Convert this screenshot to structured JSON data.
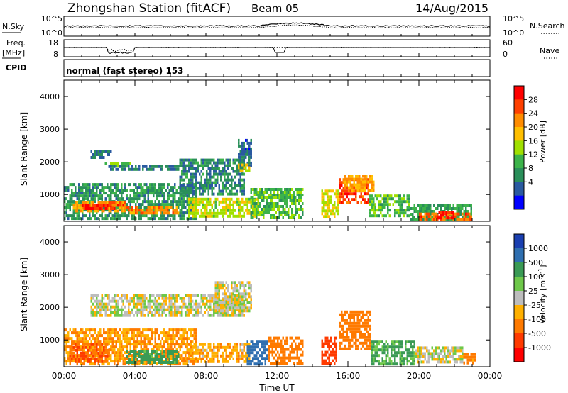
{
  "header": {
    "station": "Zhongshan Station (fitACF)",
    "beam": "Beam 05",
    "date": "14/Aug/2015"
  },
  "strip": {
    "nsky_label": "N.Sky",
    "nsky_ticks": [
      "10^5",
      "10^0"
    ],
    "nsearch_label": "N.Search",
    "nsearch_ticks": [
      "10^5",
      "10^0"
    ],
    "freq_label_1": "Freq.",
    "freq_label_2": "[MHz]",
    "freq_ticks": [
      "18",
      "8"
    ],
    "nave_label": "Nave",
    "nave_ticks": [
      "60",
      "0"
    ],
    "cpid_label": "CPID",
    "cpid_value": "normal (fast stereo) 153"
  },
  "power_colorbar": {
    "label": "Power [dB]",
    "ticks": [
      "28",
      "24",
      "20",
      "16",
      "12",
      "8",
      "4"
    ],
    "colors": [
      "#ff0000",
      "#ff4000",
      "#ff8c00",
      "#ffbf00",
      "#a0e000",
      "#3cb34a",
      "#2a8f5a",
      "#2a5aa0",
      "#0000ff"
    ]
  },
  "velocity_colorbar": {
    "label": "Velocity [m s",
    "label_sup": "-1",
    "label_end": "]",
    "ticks": [
      "1000",
      "500",
      "100",
      "25",
      "-25",
      "-100",
      "-500",
      "-1000"
    ],
    "colors": [
      "#1a3fb0",
      "#2f6fb0",
      "#3a9a55",
      "#6ec84a",
      "#bdbdbd",
      "#ffb000",
      "#ff7a00",
      "#ff3a00",
      "#ff0000"
    ]
  },
  "x_axis": {
    "label": "Time UT",
    "ticks": [
      "00:00",
      "04:00",
      "08:00",
      "12:00",
      "16:00",
      "20:00",
      "00:00"
    ]
  },
  "chart_data": [
    {
      "type": "heatmap",
      "name": "Power",
      "ylabel": "Slant Range [km]",
      "xlabel": "",
      "x_range_hours": [
        0,
        24
      ],
      "ylim_km": [
        180,
        4500
      ],
      "y_ticks": [
        1000,
        2000,
        3000,
        4000
      ],
      "color_scale_db": [
        0,
        30
      ],
      "patches": [
        {
          "t": [
            0.0,
            7.5
          ],
          "r": [
            300,
            1350
          ],
          "v": 9
        },
        {
          "t": [
            0.5,
            3.5
          ],
          "r": [
            500,
            800
          ],
          "v": 20
        },
        {
          "t": [
            1.0,
            3.0
          ],
          "r": [
            550,
            700
          ],
          "v": 27
        },
        {
          "t": [
            3.5,
            6.5
          ],
          "r": [
            400,
            650
          ],
          "v": 22
        },
        {
          "t": [
            7.0,
            11.0
          ],
          "r": [
            350,
            900
          ],
          "v": 16
        },
        {
          "t": [
            2.5,
            3.5
          ],
          "r": [
            700,
            800
          ],
          "v": 25
        },
        {
          "t": [
            1.5,
            2.7
          ],
          "r": [
            2150,
            2350
          ],
          "v": 6
        },
        {
          "t": [
            2.3,
            3.8
          ],
          "r": [
            1850,
            2000
          ],
          "v": 13
        },
        {
          "t": [
            2.5,
            6.5
          ],
          "r": [
            1750,
            1900
          ],
          "v": 7
        },
        {
          "t": [
            6.5,
            10.2
          ],
          "r": [
            1000,
            2100
          ],
          "v": 8
        },
        {
          "t": [
            9.8,
            10.6
          ],
          "r": [
            1900,
            2700
          ],
          "v": 6
        },
        {
          "t": [
            9.8,
            10.5
          ],
          "r": [
            1750,
            1950
          ],
          "v": 17
        },
        {
          "t": [
            10.5,
            13.5
          ],
          "r": [
            300,
            1200
          ],
          "v": 12
        },
        {
          "t": [
            14.5,
            15.5
          ],
          "r": [
            300,
            1150
          ],
          "v": 17
        },
        {
          "t": [
            15.5,
            17.2
          ],
          "r": [
            750,
            1500
          ],
          "v": 25
        },
        {
          "t": [
            15.8,
            17.5
          ],
          "r": [
            1100,
            1600
          ],
          "v": 20
        },
        {
          "t": [
            17.2,
            19.5
          ],
          "r": [
            350,
            1000
          ],
          "v": 12
        },
        {
          "t": [
            19.5,
            23.0
          ],
          "r": [
            250,
            700
          ],
          "v": 10
        },
        {
          "t": [
            20.0,
            23.0
          ],
          "r": [
            250,
            450
          ],
          "v": 24
        },
        {
          "t": [
            21.0,
            22.0
          ],
          "r": [
            300,
            500
          ],
          "v": 28
        }
      ]
    },
    {
      "type": "heatmap",
      "name": "Velocity",
      "ylabel": "Slant Range [km]",
      "xlabel": "Time UT",
      "x_range_hours": [
        0,
        24
      ],
      "ylim_km": [
        180,
        4500
      ],
      "y_ticks": [
        1000,
        2000,
        3000,
        4000
      ],
      "color_scale_ms": [
        -1000,
        1000
      ],
      "patches": [
        {
          "t": [
            0.0,
            7.5
          ],
          "r": [
            300,
            1350
          ],
          "v": -100
        },
        {
          "t": [
            0.3,
            2.5
          ],
          "r": [
            350,
            900
          ],
          "v": -500
        },
        {
          "t": [
            3.5,
            6.5
          ],
          "r": [
            350,
            700
          ],
          "v": 150
        },
        {
          "t": [
            7.0,
            10.5
          ],
          "r": [
            300,
            900
          ],
          "v": -80
        },
        {
          "t": [
            1.5,
            10.2
          ],
          "r": [
            1750,
            2400
          ],
          "v": 0
        },
        {
          "t": [
            8.5,
            10.6
          ],
          "r": [
            1900,
            2800
          ],
          "v": 0
        },
        {
          "t": [
            10.3,
            11.5
          ],
          "r": [
            300,
            1000
          ],
          "v": 700
        },
        {
          "t": [
            11.5,
            13.5
          ],
          "r": [
            300,
            1100
          ],
          "v": -300
        },
        {
          "t": [
            14.5,
            15.3
          ],
          "r": [
            300,
            1100
          ],
          "v": -600
        },
        {
          "t": [
            15.5,
            17.3
          ],
          "r": [
            700,
            1900
          ],
          "v": -200
        },
        {
          "t": [
            17.3,
            19.8
          ],
          "r": [
            300,
            1000
          ],
          "v": 120
        },
        {
          "t": [
            19.8,
            22.5
          ],
          "r": [
            300,
            800
          ],
          "v": 0
        },
        {
          "t": [
            22.5,
            23.2
          ],
          "r": [
            300,
            600
          ],
          "v": -150
        }
      ]
    }
  ]
}
